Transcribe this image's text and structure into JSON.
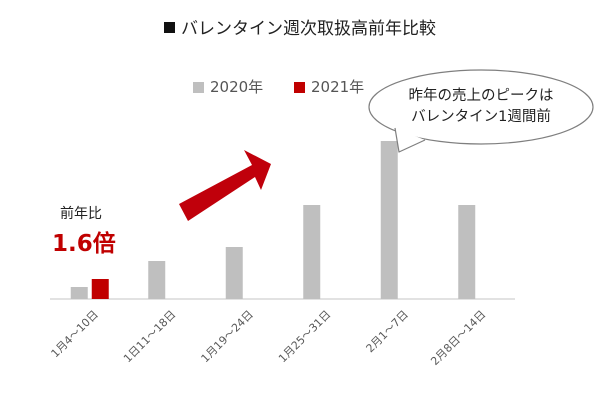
{
  "title": "バレンタイン週次取扱高前年比較",
  "annotation": {
    "ratio_label": "前年比",
    "ratio_value": "1.6倍",
    "callout_line1": "昨年の売上のピークは",
    "callout_line2": "バレンタイン1週間前"
  },
  "colors": {
    "series_2020": "#bfbfbf",
    "series_2021": "#c00000",
    "axis": "#d9d9d9",
    "arrow": "#c0000b"
  },
  "chart_data": {
    "type": "bar",
    "title": "バレンタイン週次取扱高前年比較",
    "categories": [
      "1月4～10日",
      "1日11～18日",
      "1月19～24日",
      "1月25～31日",
      "2月1～7日",
      "2月8日～14日"
    ],
    "series": [
      {
        "name": "2020年",
        "values": [
          12,
          38,
          52,
          94,
          158,
          94
        ]
      },
      {
        "name": "2021年",
        "values": [
          20,
          null,
          null,
          null,
          null,
          null
        ]
      }
    ],
    "ylim": [
      0,
      170
    ],
    "grid": false,
    "legend": "top",
    "xlabel": "",
    "ylabel": ""
  }
}
